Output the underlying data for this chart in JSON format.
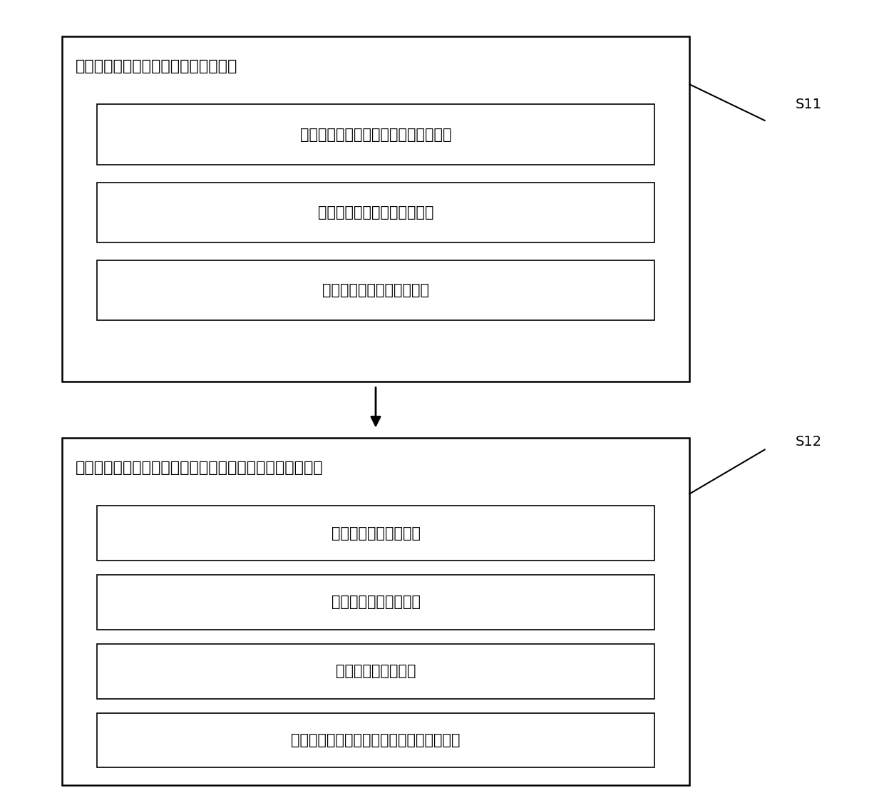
{
  "title_block1": "建立循环水系统的动态模型和稳态模型",
  "sub_boxes1": [
    "建立循环水系统的水力模型和热力模型",
    "通过试验数据，修正模型参数",
    "建立循环水系统的稳态模型"
  ],
  "label1": "S11",
  "title_block2": "根据生产过程工艺要求，设置被控变量和操作变量的优先级",
  "sub_boxes2": [
    "被控变量的优先级设置",
    "操作变量的优先级设置",
    "操作变量的效益方向",
    "操作变量与被控变量之间的相关性方向设置"
  ],
  "label2": "S12",
  "bg_color": "#ffffff",
  "box_edge_color": "#000000",
  "text_color": "#000000",
  "font_size_title": 16,
  "font_size_sub": 15,
  "font_size_label": 14
}
